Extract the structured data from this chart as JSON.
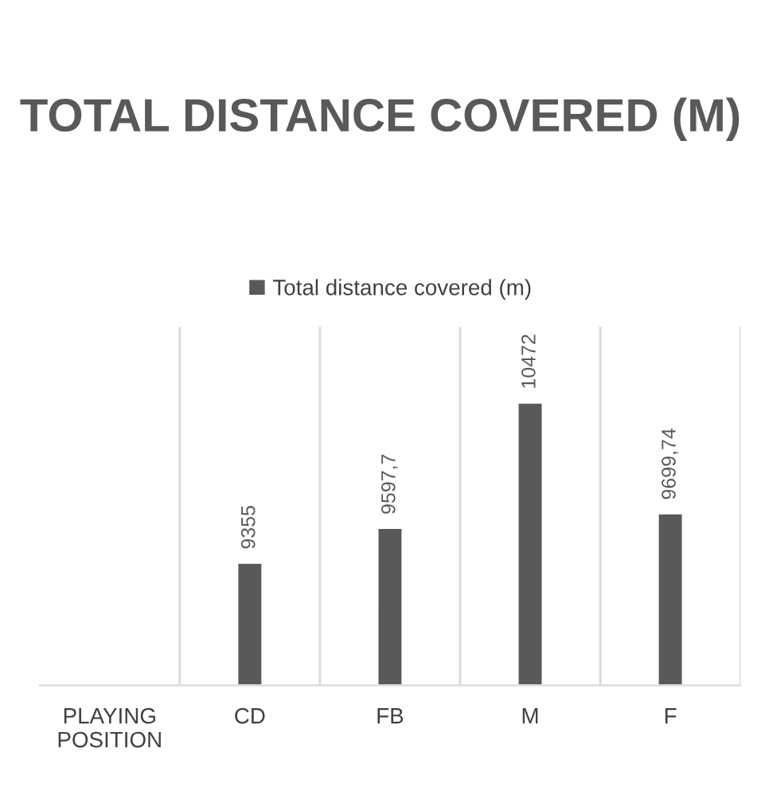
{
  "chart_data": {
    "type": "bar",
    "title": "TOTAL DISTANCE COVERED (M)",
    "categories": [
      "PLAYING POSITION",
      "CD",
      "FB",
      "M",
      "F"
    ],
    "series": [
      {
        "name": "Total distance covered (m)",
        "color": "#595959",
        "values": [
          null,
          9355,
          9597.7,
          10472,
          9699.74
        ],
        "value_labels": [
          null,
          "9355",
          "9597,7",
          "10472",
          "9699,74"
        ]
      }
    ],
    "ylim": [
      8500,
      11000
    ],
    "tick_labels": "x",
    "grid": "x",
    "legend": "top"
  }
}
